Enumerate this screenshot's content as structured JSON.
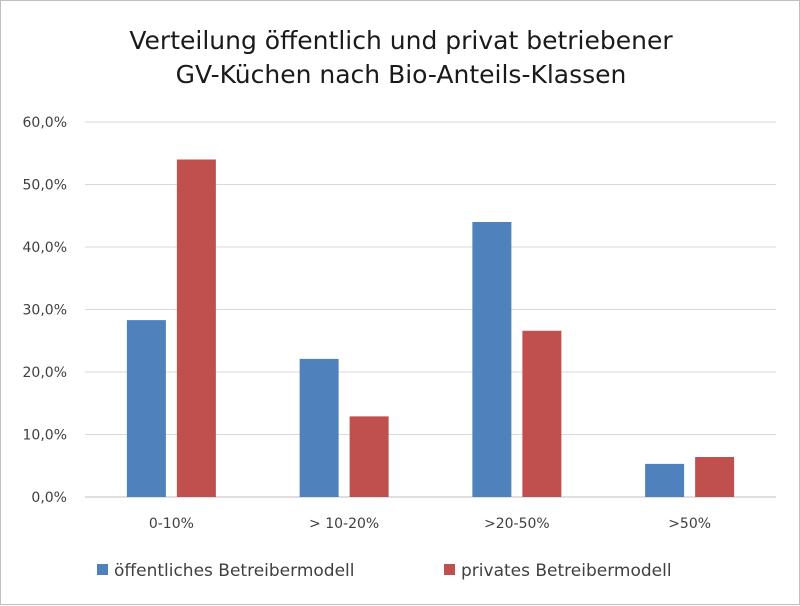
{
  "chart_data": {
    "type": "bar",
    "title_lines": [
      "Verteilung öffentlich und privat betriebener",
      "GV-Küchen nach Bio-Anteils-Klassen"
    ],
    "xlabel": "",
    "ylabel": "",
    "categories": [
      "0-10%",
      "> 10-20%",
      ">20-50%",
      ">50%"
    ],
    "series": [
      {
        "name": "öffentliches Betreibermodell",
        "color": "#4f81bd",
        "values": [
          28.3,
          22.1,
          44.0,
          5.3
        ]
      },
      {
        "name": "privates Betreibermodell",
        "color": "#c0504d",
        "values": [
          54.0,
          12.9,
          26.6,
          6.4
        ]
      }
    ],
    "ylim": [
      0,
      60
    ],
    "yticks": [
      0,
      10,
      20,
      30,
      40,
      50,
      60
    ],
    "ytick_labels": [
      "0,0%",
      "10,0%",
      "20,0%",
      "30,0%",
      "40,0%",
      "50,0%",
      "60,0%"
    ],
    "grid": true,
    "legend_position": "bottom"
  }
}
